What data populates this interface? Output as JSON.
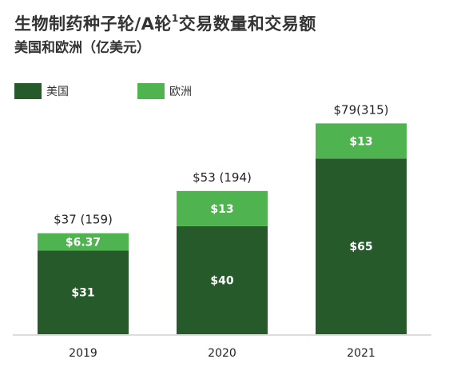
{
  "title_main": "生物制药种子轮/A轮",
  "title_sup": "1",
  "title_tail": "交易数量和交易额",
  "subtitle": "美国和欧洲（亿美元）",
  "colors": {
    "us": "#275a2b",
    "eu": "#4fb34f",
    "axis": "#bbbbbb"
  },
  "chart_data": {
    "type": "bar",
    "stacked": true,
    "categories": [
      "2019",
      "2020",
      "2021"
    ],
    "series": [
      {
        "name": "美国",
        "values": [
          31,
          40,
          65
        ],
        "labels": [
          "$31",
          "$40",
          "$65"
        ]
      },
      {
        "name": "欧洲",
        "values": [
          6.37,
          13,
          13
        ],
        "labels": [
          "$6.37",
          "$13",
          "$13"
        ]
      }
    ],
    "totals": [
      "$37 (159)",
      "$53 (194)",
      "$79(315)"
    ],
    "ylim": [
      0,
      80
    ],
    "legend_position": "top-left",
    "grid": false
  }
}
